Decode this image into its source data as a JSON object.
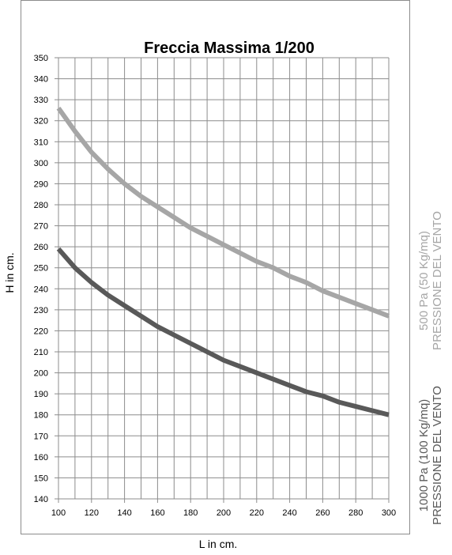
{
  "chart_data": {
    "type": "line",
    "title": "Freccia Massima 1/200",
    "xlabel": "L in cm.",
    "ylabel": "H  in cm.",
    "xlim": [
      100,
      300
    ],
    "ylim": [
      140,
      350
    ],
    "x_ticks": [
      100,
      120,
      140,
      160,
      180,
      200,
      220,
      240,
      260,
      280,
      300
    ],
    "y_ticks": [
      140,
      150,
      160,
      170,
      180,
      190,
      200,
      210,
      220,
      230,
      240,
      250,
      260,
      270,
      280,
      290,
      300,
      310,
      320,
      330,
      340,
      350
    ],
    "grid": true,
    "x": [
      100,
      110,
      120,
      130,
      140,
      150,
      160,
      170,
      180,
      190,
      200,
      210,
      220,
      230,
      240,
      250,
      260,
      270,
      280,
      290,
      300
    ],
    "series": [
      {
        "legend_lines": [
          "500 Pa (50 Kg/mq)",
          "PRESSIONE DEL VENTO"
        ],
        "color": "#a6a6a6",
        "values": [
          326,
          315,
          305,
          297,
          290,
          284,
          279,
          274,
          269,
          265,
          261,
          257,
          253,
          250,
          246,
          243,
          239,
          236,
          233,
          230,
          227
        ]
      },
      {
        "legend_lines": [
          "1000 Pa (100 Kg/mq)",
          "PRESSIONE DEL VENTO"
        ],
        "color": "#595959",
        "values": [
          259,
          250,
          243,
          237,
          232,
          227,
          222,
          218,
          214,
          210,
          206,
          203,
          200,
          197,
          194,
          191,
          189,
          186,
          184,
          182,
          180
        ]
      }
    ]
  }
}
